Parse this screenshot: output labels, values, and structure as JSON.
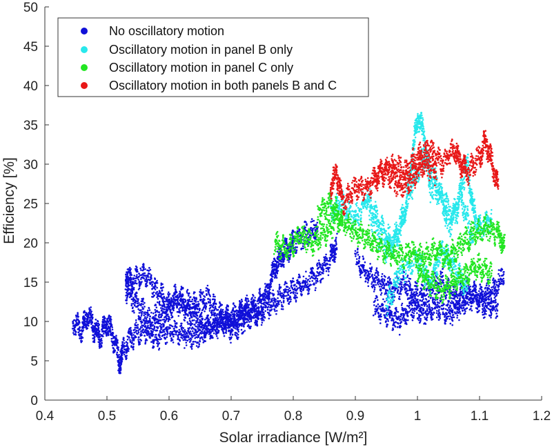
{
  "chart_data": {
    "type": "scatter",
    "xlabel": "Solar irradiance [W/m²]",
    "ylabel": "Efficiency [%]",
    "xlim": [
      0.4,
      1.2
    ],
    "ylim": [
      0,
      50
    ],
    "xticks": [
      "0.4",
      "0.5",
      "0.6",
      "0.7",
      "0.8",
      "0.9",
      "1",
      "1.1",
      "1.2"
    ],
    "yticks": [
      "0",
      "5",
      "10",
      "15",
      "20",
      "25",
      "30",
      "35",
      "40",
      "45",
      "50"
    ],
    "grid": false,
    "legend_position": "top-left",
    "series": [
      {
        "name": "No oscillatory motion",
        "color": "#1010d8",
        "segments": [
          [
            [
              0.445,
              10
            ],
            [
              0.46,
              9
            ],
            [
              0.47,
              11
            ],
            [
              0.48,
              9
            ],
            [
              0.49,
              8
            ],
            [
              0.5,
              10
            ],
            [
              0.51,
              8
            ],
            [
              0.52,
              5
            ],
            [
              0.525,
              6
            ],
            [
              0.54,
              8
            ],
            [
              0.56,
              9
            ],
            [
              0.58,
              8
            ],
            [
              0.6,
              9
            ],
            [
              0.62,
              8.5
            ],
            [
              0.64,
              8
            ],
            [
              0.66,
              9
            ],
            [
              0.68,
              10
            ],
            [
              0.7,
              9
            ],
            [
              0.72,
              10
            ],
            [
              0.74,
              11
            ],
            [
              0.76,
              12
            ],
            [
              0.78,
              13
            ],
            [
              0.8,
              14
            ],
            [
              0.82,
              15
            ],
            [
              0.84,
              16
            ],
            [
              0.86,
              18
            ],
            [
              0.87,
              20
            ]
          ],
          [
            [
              0.53,
              16
            ],
            [
              0.54,
              15
            ],
            [
              0.56,
              16
            ],
            [
              0.58,
              14
            ],
            [
              0.6,
              12
            ],
            [
              0.62,
              13
            ],
            [
              0.64,
              12
            ],
            [
              0.66,
              13
            ],
            [
              0.68,
              11
            ],
            [
              0.7,
              10
            ],
            [
              0.72,
              11
            ],
            [
              0.74,
              12
            ],
            [
              0.76,
              14
            ],
            [
              0.77,
              17
            ],
            [
              0.78,
              18
            ],
            [
              0.79,
              19
            ],
            [
              0.8,
              20
            ],
            [
              0.82,
              21
            ],
            [
              0.84,
              22
            ]
          ],
          [
            [
              0.53,
              14
            ],
            [
              0.55,
              12
            ],
            [
              0.57,
              10
            ],
            [
              0.59,
              11
            ],
            [
              0.61,
              13
            ],
            [
              0.63,
              11
            ],
            [
              0.65,
              10
            ],
            [
              0.67,
              9
            ],
            [
              0.69,
              10
            ],
            [
              0.71,
              11
            ],
            [
              0.73,
              12
            ],
            [
              0.75,
              11
            ]
          ],
          [
            [
              0.9,
              18
            ],
            [
              0.92,
              16
            ],
            [
              0.94,
              15
            ],
            [
              0.96,
              14
            ],
            [
              0.98,
              15
            ],
            [
              1.0,
              13
            ],
            [
              1.02,
              14
            ],
            [
              1.04,
              15
            ],
            [
              1.06,
              13
            ],
            [
              1.08,
              14
            ],
            [
              1.1,
              13
            ],
            [
              1.12,
              14
            ],
            [
              1.14,
              16
            ]
          ],
          [
            [
              0.93,
              12
            ],
            [
              0.95,
              11
            ],
            [
              0.97,
              10
            ],
            [
              0.99,
              12
            ],
            [
              1.01,
              11
            ],
            [
              1.03,
              12
            ],
            [
              1.05,
              11
            ],
            [
              1.07,
              12
            ],
            [
              1.09,
              13
            ],
            [
              1.11,
              12
            ],
            [
              1.13,
              12
            ]
          ]
        ]
      },
      {
        "name": "Oscillatory motion in panel B only",
        "color": "#28e8ec",
        "segments": [
          [
            [
              0.86,
              24
            ],
            [
              0.88,
              25
            ],
            [
              0.9,
              23
            ],
            [
              0.92,
              26
            ],
            [
              0.94,
              22
            ],
            [
              0.96,
              20
            ],
            [
              0.98,
              24
            ],
            [
              0.99,
              30
            ],
            [
              1.0,
              36
            ],
            [
              1.01,
              34
            ],
            [
              1.02,
              27
            ],
            [
              1.04,
              26
            ],
            [
              1.06,
              23
            ],
            [
              1.08,
              30
            ],
            [
              1.09,
              24
            ],
            [
              1.1,
              22
            ],
            [
              1.12,
              23
            ]
          ],
          [
            [
              0.92,
              24
            ],
            [
              0.95,
              19
            ],
            [
              0.97,
              21
            ],
            [
              0.99,
              27
            ],
            [
              1.01,
              31
            ],
            [
              1.03,
              28
            ],
            [
              1.05,
              22
            ],
            [
              1.07,
              26
            ],
            [
              1.09,
              20
            ]
          ],
          [
            [
              0.95,
              12
            ],
            [
              0.97,
              16
            ],
            [
              1.0,
              18
            ],
            [
              1.02,
              15
            ],
            [
              1.04,
              19
            ],
            [
              1.06,
              17
            ],
            [
              1.08,
              14
            ]
          ]
        ]
      },
      {
        "name": "Oscillatory motion in panel C only",
        "color": "#22e622",
        "segments": [
          [
            [
              0.77,
              20
            ],
            [
              0.79,
              19
            ],
            [
              0.81,
              21
            ],
            [
              0.83,
              20
            ],
            [
              0.85,
              21
            ],
            [
              0.87,
              23
            ],
            [
              0.89,
              22
            ],
            [
              0.91,
              21
            ],
            [
              0.93,
              20
            ],
            [
              0.95,
              19
            ],
            [
              0.97,
              18
            ],
            [
              0.99,
              19
            ],
            [
              1.01,
              18
            ],
            [
              1.03,
              19
            ],
            [
              1.05,
              18
            ],
            [
              1.07,
              20
            ],
            [
              1.09,
              21
            ],
            [
              1.11,
              22
            ],
            [
              1.13,
              21
            ],
            [
              1.14,
              20
            ]
          ],
          [
            [
              0.84,
              24
            ],
            [
              0.86,
              25
            ],
            [
              0.88,
              23
            ]
          ],
          [
            [
              1.0,
              16
            ],
            [
              1.02,
              15
            ],
            [
              1.04,
              14
            ],
            [
              1.06,
              15
            ],
            [
              1.08,
              16
            ],
            [
              1.1,
              17
            ],
            [
              1.12,
              16
            ]
          ]
        ]
      },
      {
        "name": "Oscillatory motion in both panels B and C",
        "color": "#e81818",
        "segments": [
          [
            [
              0.86,
              27
            ],
            [
              0.87,
              29
            ],
            [
              0.88,
              25
            ],
            [
              0.9,
              27
            ],
            [
              0.92,
              27
            ],
            [
              0.94,
              29
            ],
            [
              0.96,
              30
            ],
            [
              0.98,
              29
            ],
            [
              1.0,
              31
            ],
            [
              1.02,
              32
            ],
            [
              1.04,
              30
            ],
            [
              1.06,
              32
            ],
            [
              1.07,
              30
            ],
            [
              1.08,
              29
            ],
            [
              1.1,
              31
            ],
            [
              1.11,
              33
            ],
            [
              1.12,
              30
            ],
            [
              1.13,
              27
            ]
          ],
          [
            [
              0.93,
              28
            ],
            [
              0.95,
              29
            ],
            [
              0.97,
              27
            ],
            [
              0.99,
              28
            ],
            [
              1.01,
              30
            ],
            [
              1.03,
              29
            ]
          ]
        ]
      }
    ]
  }
}
